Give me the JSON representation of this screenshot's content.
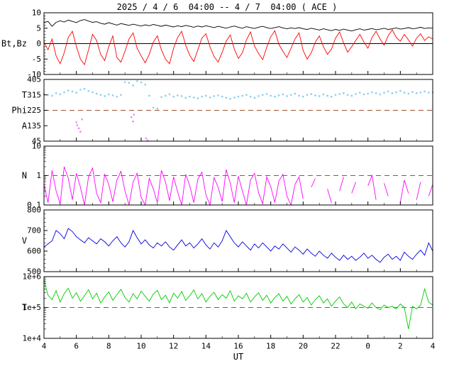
{
  "title": "2025 / 4 / 6  04:00 -- 4 / 7  04:00 ( ACE )",
  "xlabel": "UT",
  "x_ticks": [
    "4",
    "6",
    "8",
    "10",
    "12",
    "14",
    "16",
    "18",
    "20",
    "22",
    "0",
    "2",
    "4"
  ],
  "chart_data": [
    {
      "name": "magnetic-field",
      "type": "line",
      "yscale": "linear",
      "ylim": [
        -10,
        10
      ],
      "yminor_step": 1,
      "yticks": [
        {
          "v": -10,
          "label": "-10"
        },
        {
          "v": -5,
          "label": "-5"
        },
        {
          "v": 0,
          "label": "0"
        },
        {
          "v": 5,
          "label": "5"
        },
        {
          "v": 10,
          "label": "10"
        }
      ],
      "ylabel_items": [
        {
          "text": "Bt,Bz",
          "y": 0
        }
      ],
      "ref_lines": [
        {
          "y": 0,
          "dash": false,
          "color": "#000000"
        }
      ],
      "series": [
        {
          "name": "Bt",
          "type": "line",
          "color": "#000000",
          "values": [
            6.8,
            7.2,
            5.6,
            6.9,
            7.4,
            7.0,
            7.6,
            7.2,
            6.8,
            7.5,
            7.8,
            7.3,
            6.9,
            7.1,
            6.6,
            6.3,
            6.8,
            6.4,
            6.0,
            6.5,
            6.2,
            5.9,
            6.3,
            6.0,
            5.7,
            6.1,
            5.8,
            6.2,
            5.9,
            5.6,
            6.0,
            5.7,
            5.4,
            5.8,
            5.5,
            5.9,
            5.6,
            5.3,
            5.7,
            5.4,
            5.8,
            5.5,
            5.2,
            5.6,
            5.3,
            5.0,
            5.4,
            5.7,
            5.3,
            5.0,
            5.5,
            5.2,
            4.9,
            5.3,
            5.6,
            5.2,
            4.9,
            5.2,
            5.5,
            5.1,
            4.8,
            5.1,
            4.9,
            5.2,
            4.8,
            4.6,
            5.0,
            4.7,
            4.4,
            4.8,
            4.5,
            4.2,
            4.6,
            4.3,
            4.7,
            4.4,
            4.1,
            4.5,
            4.8,
            4.4,
            4.6,
            4.9,
            4.5,
            4.7,
            5.0,
            4.6,
            4.8,
            5.1,
            4.7,
            4.9,
            5.2,
            4.8,
            5.0,
            5.3,
            4.9,
            5.1,
            5.0
          ]
        },
        {
          "name": "Bz",
          "type": "line",
          "color": "#ff0000",
          "values": [
            0.5,
            -2,
            1.5,
            -4,
            -6.5,
            -3,
            2,
            4,
            -1,
            -5,
            -6.8,
            -2,
            3,
            1,
            -3.5,
            -5.5,
            -1,
            2.5,
            -4.5,
            -6,
            -2.5,
            1.5,
            3.5,
            -1.5,
            -4,
            -6.2,
            -3.5,
            0.5,
            2.5,
            -2,
            -5,
            -6.5,
            -1.5,
            2,
            4,
            -0.5,
            -3.8,
            -5.8,
            -2,
            1.8,
            3.2,
            -1,
            -4.2,
            -6,
            -2.8,
            0.8,
            2.8,
            -1.8,
            -4.8,
            -3,
            1.2,
            3.8,
            -0.8,
            -3.2,
            -5.2,
            -1.2,
            2.2,
            4.2,
            -0.2,
            -2.5,
            -4.5,
            -1.5,
            1.5,
            3.5,
            -2.2,
            -5,
            -3,
            0.5,
            2.5,
            -1,
            -3.5,
            -1.8,
            1.8,
            3.8,
            0.2,
            -2.8,
            -1,
            1,
            3,
            0.5,
            -1.5,
            2,
            4,
            1.5,
            -0.5,
            2.5,
            4.5,
            2,
            0.8,
            3,
            1.2,
            -0.8,
            1.8,
            3.2,
            1,
            2.2,
            1.5
          ]
        }
      ]
    },
    {
      "name": "phi-angle",
      "type": "scatter",
      "yscale": "linear",
      "ylim": [
        45,
        405
      ],
      "yticks": [
        {
          "v": 45,
          "label": "45"
        },
        {
          "v": 135,
          "label": "135"
        },
        {
          "v": 225,
          "label": "225"
        },
        {
          "v": 315,
          "label": "315"
        },
        {
          "v": 405,
          "label": "405"
        }
      ],
      "ylabel_items": [
        {
          "text": "T",
          "y": 315
        },
        {
          "text": "Phi",
          "y": 225
        },
        {
          "text": "A",
          "y": 135
        }
      ],
      "ref_lines": [
        {
          "y": 225,
          "dash": true,
          "color": "#a0522d"
        }
      ],
      "series": [
        {
          "name": "Phi",
          "type": "scatter",
          "color": "#87ceeb",
          "values": [
            320,
            315,
            310,
            325,
            318,
            330,
            340,
            335,
            328,
            345,
            350,
            338,
            330,
            322,
            315,
            308,
            318,
            312,
            305,
            315,
            390,
            385,
            370,
            395,
            388,
            375,
            310,
            240,
            235,
            302,
            310,
            318,
            305,
            312,
            308,
            298,
            305,
            300,
            295,
            305,
            310,
            300,
            308,
            312,
            305,
            298,
            292,
            300,
            305,
            310,
            315,
            305,
            298,
            308,
            315,
            320,
            310,
            305,
            312,
            318,
            308,
            315,
            322,
            310,
            305,
            315,
            320,
            312,
            308,
            318,
            310,
            305,
            315,
            320,
            325,
            315,
            310,
            320,
            328,
            318,
            322,
            330,
            325,
            318,
            328,
            335,
            325,
            330,
            338,
            328,
            322,
            332,
            325,
            330,
            335,
            328,
            330
          ]
        },
        {
          "name": "Phi-flagged",
          "type": "scatter",
          "color": "#ee82ee",
          "points": [
            [
              2.0,
              155
            ],
            [
              2.05,
              138
            ],
            [
              2.15,
              120
            ],
            [
              2.25,
              100
            ],
            [
              2.35,
              172
            ],
            [
              5.4,
              185
            ],
            [
              5.5,
              160
            ],
            [
              5.55,
              200
            ],
            [
              6.3,
              62
            ],
            [
              6.4,
              50
            ]
          ]
        }
      ]
    },
    {
      "name": "density",
      "type": "line",
      "yscale": "log",
      "ylim": [
        0.1,
        10
      ],
      "yticks": [
        {
          "v": 0.1,
          "label": "0.1"
        },
        {
          "v": 1,
          "label": "1"
        },
        {
          "v": 10,
          "label": "10"
        }
      ],
      "ylabel_items": [
        {
          "text": "N",
          "y": 1
        }
      ],
      "ref_lines": [
        {
          "y": 1,
          "dash": true,
          "color": "#a0522d"
        }
      ],
      "series": [
        {
          "name": "N",
          "type": "line",
          "color": "#ff00ff",
          "values": [
            0.5,
            0.12,
            1.5,
            0.3,
            0.11,
            2.0,
            0.8,
            0.15,
            1.2,
            0.4,
            0.1,
            0.9,
            1.8,
            0.25,
            0.12,
            1.1,
            0.5,
            0.13,
            0.7,
            1.4,
            0.3,
            0.1,
            0.6,
            1.2,
            0.18,
            0.1,
            0.8,
            0.35,
            0.12,
            1.5,
            0.6,
            0.14,
            0.9,
            0.28,
            0.1,
            1.1,
            0.45,
            0.12,
            0.75,
            1.3,
            0.22,
            0.1,
            0.85,
            0.4,
            0.13,
            1.6,
            0.55,
            0.12,
            0.95,
            0.3,
            0.1,
            0.7,
            1.2,
            0.26,
            0.11,
            0.9,
            0.42,
            0.12,
            0.65,
            1.1,
            0.2,
            0.1,
            0.5,
            0.9,
            0.16,
            null,
            0.4,
            0.8,
            null,
            null,
            0.35,
            0.12,
            null,
            0.3,
            0.9,
            null,
            0.25,
            0.6,
            null,
            null,
            0.45,
            1.0,
            0.15,
            null,
            0.55,
            0.2,
            null,
            null,
            0.12,
            0.7,
            0.25,
            null,
            0.15,
            0.6,
            null,
            0.2,
            0.5
          ]
        }
      ]
    },
    {
      "name": "speed",
      "type": "line",
      "yscale": "linear",
      "ylim": [
        500,
        800
      ],
      "yminor_step": 20,
      "yticks": [
        {
          "v": 500,
          "label": "500"
        },
        {
          "v": 600,
          "label": "600"
        },
        {
          "v": 700,
          "label": "700"
        },
        {
          "v": 800,
          "label": "800"
        }
      ],
      "ylabel_items": [
        {
          "text": "V",
          "y": 650
        }
      ],
      "ref_lines": [],
      "series": [
        {
          "name": "V",
          "type": "line",
          "color": "#0000dd",
          "values": [
            620,
            635,
            650,
            700,
            685,
            660,
            710,
            695,
            670,
            655,
            640,
            665,
            650,
            635,
            660,
            645,
            625,
            650,
            670,
            640,
            620,
            645,
            700,
            665,
            635,
            655,
            630,
            615,
            640,
            625,
            645,
            620,
            605,
            630,
            655,
            625,
            640,
            615,
            635,
            660,
            630,
            610,
            640,
            620,
            650,
            700,
            670,
            640,
            620,
            645,
            625,
            605,
            635,
            615,
            640,
            620,
            600,
            625,
            610,
            635,
            615,
            595,
            620,
            605,
            585,
            610,
            590,
            575,
            600,
            580,
            565,
            590,
            570,
            555,
            580,
            560,
            575,
            555,
            570,
            590,
            565,
            580,
            560,
            545,
            570,
            585,
            560,
            575,
            555,
            595,
            575,
            560,
            585,
            605,
            580,
            640,
            600
          ]
        }
      ]
    },
    {
      "name": "temperature",
      "type": "line",
      "yscale": "log",
      "ylim": [
        10000,
        1000000
      ],
      "yticks": [
        {
          "v": 10000,
          "label": "1e+4"
        },
        {
          "v": 100000,
          "label": "1e+5"
        },
        {
          "v": 1000000,
          "label": "1e+6"
        }
      ],
      "ylabel_items": [
        {
          "text": "T",
          "y": 100000
        }
      ],
      "ref_lines": [
        {
          "y": 100000,
          "dash": true,
          "color": "#a0522d"
        }
      ],
      "series": [
        {
          "name": "T",
          "type": "line",
          "color": "#00cc00",
          "values": [
            800000.0,
            250000.0,
            180000.0,
            350000.0,
            150000.0,
            280000.0,
            420000.0,
            200000.0,
            300000.0,
            160000.0,
            240000.0,
            380000.0,
            190000.0,
            290000.0,
            140000.0,
            220000.0,
            320000.0,
            170000.0,
            260000.0,
            390000.0,
            210000.0,
            150000.0,
            280000.0,
            190000.0,
            340000.0,
            230000.0,
            160000.0,
            270000.0,
            360000.0,
            180000.0,
            250000.0,
            140000.0,
            290000.0,
            200000.0,
            330000.0,
            170000.0,
            240000.0,
            370000.0,
            190000.0,
            280000.0,
            150000.0,
            230000.0,
            310000.0,
            180000.0,
            260000.0,
            200000.0,
            350000.0,
            160000.0,
            240000.0,
            190000.0,
            290000.0,
            150000.0,
            220000.0,
            300000.0,
            170000.0,
            250000.0,
            140000.0,
            210000.0,
            280000.0,
            160000.0,
            230000.0,
            130000.0,
            190000.0,
            260000.0,
            150000.0,
            210000.0,
            120000.0,
            180000.0,
            240000.0,
            140000.0,
            190000.0,
            110000.0,
            160000.0,
            220000.0,
            130000.0,
            100000.0,
            150000.0,
            90000.0,
            130000.0,
            110000.0,
            95000.0,
            140000.0,
            100000.0,
            85000.0,
            120000.0,
            100000.0,
            110000.0,
            90000.0,
            130000.0,
            100000.0,
            20000.0,
            110000.0,
            90000.0,
            120000.0,
            400000.0,
            150000.0,
            120000.0
          ]
        }
      ]
    }
  ]
}
